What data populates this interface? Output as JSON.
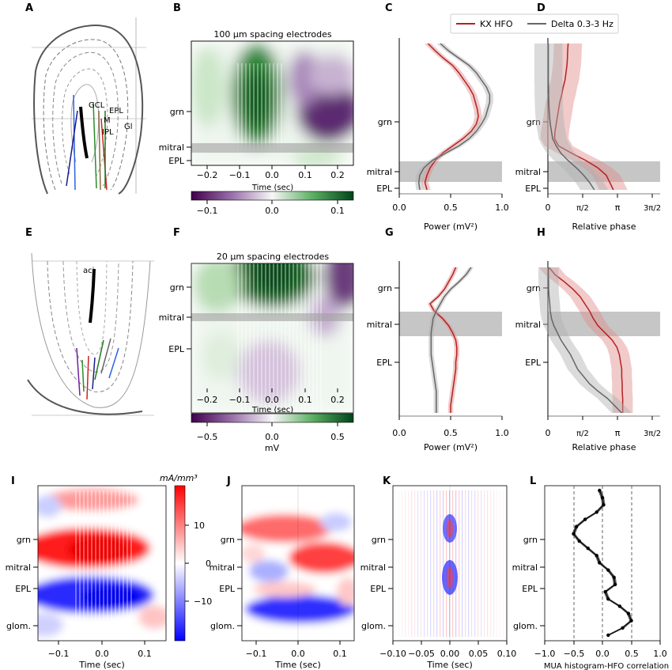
{
  "panel_letters": [
    "A",
    "B",
    "C",
    "D",
    "E",
    "F",
    "G",
    "H",
    "I",
    "J",
    "K",
    "L"
  ],
  "top_row": {
    "B": {
      "title": "100 μm spacing electrodes",
      "xlabel": "Time (sec)",
      "layers": [
        "grn",
        "mitral",
        "EPL"
      ],
      "xticks": [
        "−0.2",
        "−0.1",
        "0.0",
        "0.1",
        "0.2"
      ],
      "colorbar_ticks": [
        "−0.1",
        "0.0",
        "0.1"
      ]
    },
    "C": {
      "xlabel": "Power (mV²)",
      "layers": [
        "grn",
        "mitral",
        "EPL"
      ],
      "xticks": [
        "0.0",
        "0.5",
        "1.0"
      ]
    },
    "D": {
      "xlabel": "Relative phase",
      "layers": [
        "grn",
        "mitral",
        "EPL"
      ],
      "xticks": [
        "0",
        "π/2",
        "π",
        "3π/2"
      ]
    }
  },
  "legend": {
    "entries": [
      {
        "label": "KX HFO",
        "color": "#b22222"
      },
      {
        "label": "Delta 0.3-3 Hz",
        "color": "#666666"
      }
    ]
  },
  "mid_row": {
    "F": {
      "title": "20 μm spacing electrodes",
      "xlabel": "Time (sec)",
      "cbar_label": "mV",
      "layers": [
        "grn",
        "mitral",
        "EPL"
      ],
      "xticks": [
        "−0.2",
        "−0.1",
        "0.0",
        "0.1",
        "0.2"
      ],
      "colorbar_ticks": [
        "−0.5",
        "0.0",
        "0.5"
      ]
    },
    "G": {
      "xlabel": "Power (mV²)",
      "layers": [
        "grn",
        "mitral",
        "EPL"
      ],
      "xticks": [
        "0.0",
        "0.5",
        "1.0"
      ]
    },
    "H": {
      "xlabel": "Relative phase",
      "layers": [
        "grn",
        "mitral",
        "EPL"
      ],
      "xticks": [
        "0",
        "π/2",
        "π",
        "3π/2"
      ]
    }
  },
  "bottom_row": {
    "I": {
      "xlabel": "Time  (sec)",
      "cbar_label": "mA/mm³",
      "layers": [
        "grn",
        "mitral",
        "EPL",
        "glom."
      ],
      "xticks": [
        "−0.1",
        "0.0",
        "0.1"
      ],
      "colorbar_ticks": [
        "10",
        "0",
        "−10"
      ]
    },
    "J": {
      "xlabel": "Time (sec)",
      "layers": [
        "grn",
        "mitral",
        "EPL",
        "glom."
      ],
      "xticks": [
        "−0.1",
        "0.0",
        "0.1"
      ]
    },
    "K": {
      "xlabel": "Time (sec)",
      "layers": [
        "grn",
        "mitral",
        "EPL",
        "glom."
      ],
      "xticks": [
        "−0.10",
        "−0.05",
        "0.00",
        "0.05",
        "0.10"
      ]
    },
    "L": {
      "xlabel": "MUA histogram-HFO correlation",
      "layers": [
        "grn",
        "mitral",
        "EPL",
        "glom."
      ],
      "xticks": [
        "−1.0",
        "−0.5",
        "0.0",
        "0.5",
        "1.0"
      ]
    }
  },
  "histology": {
    "A": {
      "labels": [
        "GCL",
        "M",
        "IPL",
        "EPL",
        "Gl"
      ]
    },
    "E": {
      "labels": [
        "aci"
      ]
    }
  },
  "chart_data": [
    {
      "panel": "C",
      "type": "line",
      "xlabel": "Power (mV²)",
      "xlim": [
        0,
        1
      ],
      "y": [
        0,
        0.05,
        0.1,
        0.15,
        0.2,
        0.25,
        0.3,
        0.35,
        0.4,
        0.45,
        0.5,
        0.55,
        0.6,
        0.65,
        0.7,
        0.75,
        0.8,
        0.85,
        0.9,
        0.95,
        1.0
      ],
      "series": [
        {
          "name": "KX HFO",
          "values": [
            0.28,
            0.35,
            0.43,
            0.52,
            0.58,
            0.63,
            0.68,
            0.72,
            0.74,
            0.76,
            0.77,
            0.75,
            0.7,
            0.62,
            0.52,
            0.42,
            0.35,
            0.3,
            0.27,
            0.25,
            0.27
          ]
        },
        {
          "name": "Delta 0.3-3 Hz",
          "values": [
            0.4,
            0.48,
            0.58,
            0.68,
            0.75,
            0.8,
            0.85,
            0.88,
            0.88,
            0.86,
            0.84,
            0.8,
            0.75,
            0.68,
            0.58,
            0.45,
            0.32,
            0.24,
            0.2,
            0.19,
            0.2
          ]
        }
      ]
    },
    {
      "panel": "D",
      "type": "line",
      "xlabel": "Relative phase",
      "xlim": [
        0,
        4.712
      ],
      "y": [
        0,
        0.05,
        0.1,
        0.15,
        0.2,
        0.25,
        0.3,
        0.35,
        0.4,
        0.45,
        0.5,
        0.55,
        0.6,
        0.65,
        0.7,
        0.75,
        0.8,
        0.85,
        0.9,
        0.95,
        1.0
      ],
      "series": [
        {
          "name": "KX HFO",
          "values": [
            0.85,
            0.83,
            0.82,
            0.8,
            0.76,
            0.72,
            0.64,
            0.58,
            0.5,
            0.45,
            0.4,
            0.35,
            0.3,
            0.28,
            0.45,
            1.0,
            1.6,
            2.1,
            2.45,
            2.6,
            2.75
          ]
        },
        {
          "name": "Delta 0.3-3 Hz",
          "values": [
            0.02,
            0.02,
            0.02,
            0.02,
            0.02,
            0.02,
            0.03,
            0.03,
            0.04,
            0.05,
            0.07,
            0.1,
            0.15,
            0.2,
            0.35,
            0.55,
            0.85,
            1.2,
            1.5,
            1.75,
            1.95
          ]
        }
      ]
    },
    {
      "panel": "G",
      "type": "line",
      "xlabel": "Power (mV²)",
      "xlim": [
        0,
        1
      ],
      "y": [
        0,
        0.05,
        0.1,
        0.15,
        0.2,
        0.25,
        0.3,
        0.35,
        0.4,
        0.45,
        0.5,
        0.55,
        0.6,
        0.65,
        0.7,
        0.75,
        0.8,
        0.85,
        0.9,
        0.95,
        1.0
      ],
      "series": [
        {
          "name": "KX HFO",
          "values": [
            0.55,
            0.52,
            0.48,
            0.44,
            0.38,
            0.3,
            0.34,
            0.42,
            0.48,
            0.52,
            0.55,
            0.56,
            0.56,
            0.55,
            0.55,
            0.54,
            0.53,
            0.52,
            0.51,
            0.5,
            0.5
          ]
        },
        {
          "name": "Delta 0.3-3 Hz",
          "values": [
            0.7,
            0.65,
            0.58,
            0.5,
            0.44,
            0.4,
            0.36,
            0.33,
            0.32,
            0.31,
            0.31,
            0.31,
            0.31,
            0.32,
            0.33,
            0.34,
            0.35,
            0.36,
            0.36,
            0.36,
            0.36
          ]
        }
      ]
    },
    {
      "panel": "H",
      "type": "line",
      "xlabel": "Relative phase",
      "xlim": [
        0,
        4.712
      ],
      "y": [
        0,
        0.05,
        0.1,
        0.15,
        0.2,
        0.25,
        0.3,
        0.35,
        0.4,
        0.45,
        0.5,
        0.55,
        0.6,
        0.65,
        0.7,
        0.75,
        0.8,
        0.85,
        0.9,
        0.95,
        1.0
      ],
      "series": [
        {
          "name": "KX HFO",
          "values": [
            0.05,
            0.3,
            0.7,
            1.05,
            1.35,
            1.55,
            1.75,
            1.9,
            2.1,
            2.4,
            2.7,
            2.9,
            3.0,
            3.05,
            3.1,
            3.1,
            3.12,
            3.12,
            3.14,
            3.14,
            3.14
          ]
        },
        {
          "name": "Delta 0.3-3 Hz",
          "values": [
            0.02,
            0.02,
            0.03,
            0.03,
            0.05,
            0.08,
            0.1,
            0.15,
            0.25,
            0.4,
            0.55,
            0.75,
            0.95,
            1.1,
            1.25,
            1.5,
            1.75,
            2.1,
            2.5,
            2.8,
            3.1
          ]
        }
      ]
    },
    {
      "panel": "L",
      "type": "line",
      "xlabel": "MUA histogram-HFO correlation",
      "xlim": [
        -1,
        1
      ],
      "y": [
        0,
        0.05,
        0.1,
        0.15,
        0.2,
        0.25,
        0.3,
        0.35,
        0.4,
        0.45,
        0.5,
        0.55,
        0.6,
        0.65,
        0.7,
        0.75,
        0.8,
        0.85,
        0.9,
        0.95,
        1.0
      ],
      "series": [
        {
          "name": "correlation",
          "values": [
            -0.05,
            0.0,
            0.02,
            -0.1,
            -0.3,
            -0.45,
            -0.5,
            -0.4,
            -0.25,
            -0.1,
            -0.05,
            0.1,
            0.2,
            0.22,
            0.05,
            0.1,
            0.3,
            0.45,
            0.5,
            0.35,
            0.1
          ]
        }
      ]
    }
  ]
}
